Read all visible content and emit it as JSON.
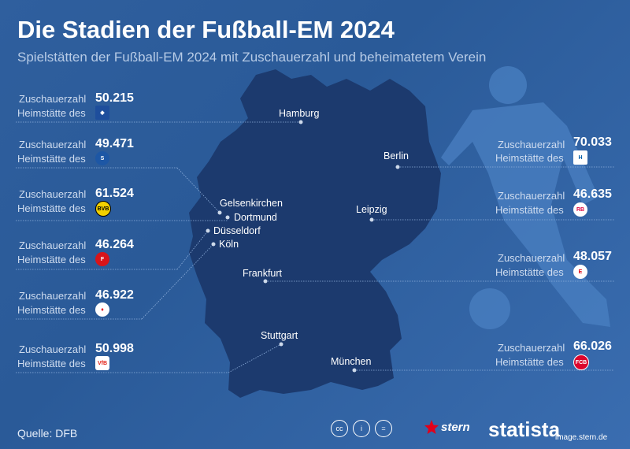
{
  "title": "Die Stadien der Fußball-EM 2024",
  "subtitle": "Spielstätten der Fußball-EM 2024 mit Zuschauerzahl und beheimatetem Verein",
  "label_capacity": "Zuschauerzahl",
  "label_home": "Heimstätte des",
  "cities": [
    "Hamburg",
    "Berlin",
    "Gelsenkirchen",
    "Dortmund",
    "Düsseldorf",
    "Köln",
    "Leipzig",
    "Frankfurt",
    "Stuttgart",
    "München"
  ],
  "left_stadiums": [
    {
      "value": "50.215",
      "club_icon": "hsv-logo-icon",
      "club_color": "#1e4e9c"
    },
    {
      "value": "49.471",
      "club_icon": "schalke-logo-icon",
      "club_color": "#1d57a5"
    },
    {
      "value": "61.524",
      "club_icon": "bvb-logo-icon",
      "club_color": "#f2d100"
    },
    {
      "value": "46.264",
      "club_icon": "fortuna-logo-icon",
      "club_color": "#d7141a"
    },
    {
      "value": "46.922",
      "club_icon": "koeln-logo-icon",
      "club_color": "#e30613"
    },
    {
      "value": "50.998",
      "club_icon": "vfb-logo-icon",
      "club_color": "#e32219"
    }
  ],
  "right_stadiums": [
    {
      "value": "70.033",
      "club_icon": "hertha-logo-icon",
      "club_color": "#005ca9"
    },
    {
      "value": "46.635",
      "club_icon": "rbl-logo-icon",
      "club_color": "#dd0741"
    },
    {
      "value": "48.057",
      "club_icon": "eintracht-logo-icon",
      "club_color": "#e1000f"
    },
    {
      "value": "66.026",
      "club_icon": "fcb-logo-icon",
      "club_color": "#dc052d"
    }
  ],
  "source": "Quelle: DFB",
  "license_icons": [
    "cc-icon",
    "by-icon",
    "nd-icon"
  ],
  "brand_stern": "stern",
  "brand_statista": "statista",
  "credit": "image.stern.de",
  "colors": {
    "map": "#1c3a6e",
    "background": "#2f5f9e",
    "silhouette": "#4a7fc0"
  }
}
